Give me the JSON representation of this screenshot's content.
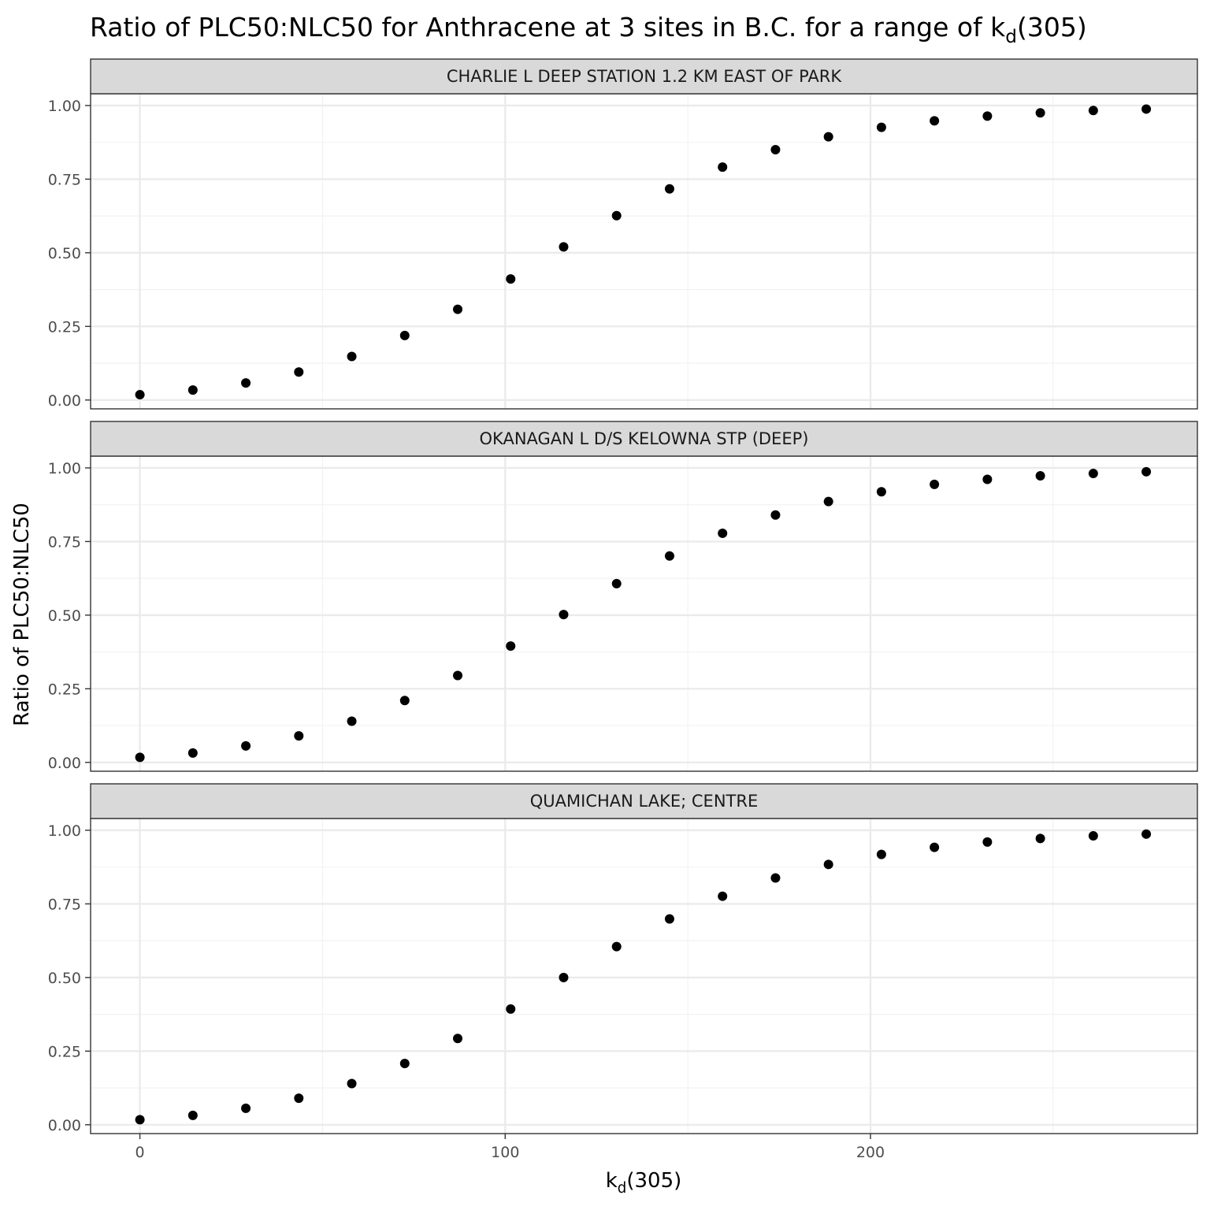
{
  "chart_data": {
    "type": "scatter",
    "title": {
      "prefix": "Ratio of PLC50:NLC50 for Anthracene at 3 sites in B.C. for a range of k",
      "subscript": "d",
      "suffix": "(305)"
    },
    "xlabel": {
      "main": "k",
      "subscript": "d",
      "suffix": "(305)"
    },
    "ylabel": "Ratio of PLC50:NLC50",
    "xlim": [
      -13.5,
      289.5
    ],
    "ylim": [
      -0.03,
      1.04
    ],
    "x_ticks": [
      0,
      100,
      200
    ],
    "x_tick_labels": [
      "0",
      "100",
      "200"
    ],
    "y_ticks": [
      0,
      0.25,
      0.5,
      0.75,
      1.0
    ],
    "y_tick_labels": [
      "0.00",
      "0.25",
      "0.50",
      "0.75",
      "1.00"
    ],
    "grid": true,
    "point_color": "#000000",
    "panels": [
      {
        "label": "CHARLIE L DEEP STATION 1.2 KM EAST OF PARK",
        "x": [
          0,
          14.5,
          29,
          43.5,
          58,
          72.5,
          87,
          101.5,
          116,
          130.5,
          145,
          159.5,
          174,
          188.5,
          203,
          217.5,
          232,
          246.5,
          261,
          275.5
        ],
        "y": [
          0.018,
          0.034,
          0.058,
          0.095,
          0.148,
          0.219,
          0.308,
          0.411,
          0.52,
          0.626,
          0.717,
          0.791,
          0.85,
          0.894,
          0.926,
          0.948,
          0.964,
          0.975,
          0.983,
          0.988
        ]
      },
      {
        "label": "OKANAGAN L D/S KELOWNA STP (DEEP)",
        "x": [
          0,
          14.5,
          29,
          43.5,
          58,
          72.5,
          87,
          101.5,
          116,
          130.5,
          145,
          159.5,
          174,
          188.5,
          203,
          217.5,
          232,
          246.5,
          261,
          275.5
        ],
        "y": [
          0.017,
          0.032,
          0.056,
          0.09,
          0.14,
          0.21,
          0.295,
          0.395,
          0.502,
          0.607,
          0.701,
          0.778,
          0.84,
          0.886,
          0.919,
          0.944,
          0.961,
          0.973,
          0.981,
          0.987
        ]
      },
      {
        "label": "QUAMICHAN LAKE; CENTRE",
        "x": [
          0,
          14.5,
          29,
          43.5,
          58,
          72.5,
          87,
          101.5,
          116,
          130.5,
          145,
          159.5,
          174,
          188.5,
          203,
          217.5,
          232,
          246.5,
          261,
          275.5
        ],
        "y": [
          0.017,
          0.032,
          0.056,
          0.09,
          0.14,
          0.208,
          0.293,
          0.393,
          0.5,
          0.605,
          0.699,
          0.776,
          0.838,
          0.884,
          0.918,
          0.942,
          0.96,
          0.972,
          0.981,
          0.987
        ]
      }
    ]
  }
}
